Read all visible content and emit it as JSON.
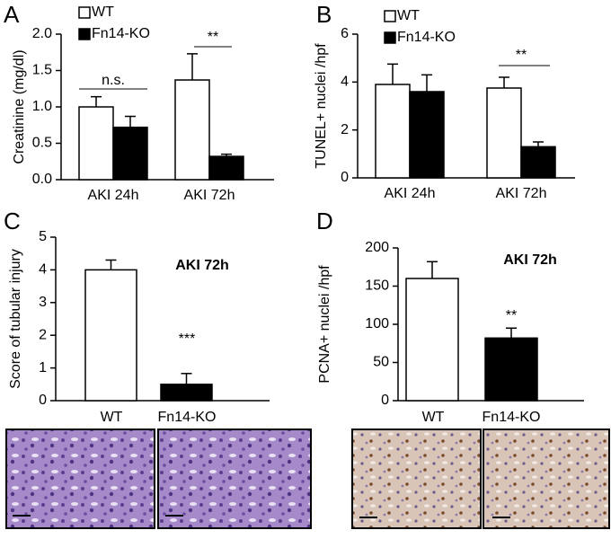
{
  "chart_data": [
    {
      "type": "bar",
      "panel": "A",
      "ylabel": "Creatinine (mg/dl)",
      "categories": [
        "AKI 24h",
        "AKI 72h"
      ],
      "series": [
        {
          "name": "WT",
          "color": "#ffffff",
          "values": [
            1.0,
            1.37
          ],
          "errors": [
            0.14,
            0.36
          ]
        },
        {
          "name": "Fn14-KO",
          "color": "#000000",
          "values": [
            0.72,
            0.32
          ],
          "errors": [
            0.15,
            0.03
          ]
        }
      ],
      "ylim": [
        0,
        2
      ],
      "yticks": [
        {
          "value": 0,
          "label": "0.0"
        },
        {
          "value": 0.5,
          "label": "0.5"
        },
        {
          "value": 1,
          "label": "1.0"
        },
        {
          "value": 1.5,
          "label": "1.5"
        },
        {
          "value": 2,
          "label": "2.0"
        }
      ],
      "annotations": [
        "n.s.",
        "**"
      ]
    },
    {
      "type": "bar",
      "panel": "B",
      "ylabel": "TUNEL+ nuclei /hpf",
      "categories": [
        "AKI 24h",
        "AKI 72h"
      ],
      "series": [
        {
          "name": "WT",
          "color": "#ffffff",
          "values": [
            3.9,
            3.75
          ],
          "errors": [
            0.85,
            0.45
          ]
        },
        {
          "name": "Fn14-KO",
          "color": "#000000",
          "values": [
            3.6,
            1.3
          ],
          "errors": [
            0.7,
            0.2
          ]
        }
      ],
      "ylim": [
        0,
        6
      ],
      "yticks": [
        0,
        2,
        4,
        6
      ],
      "annotations": [
        "**"
      ]
    },
    {
      "type": "bar",
      "panel": "C",
      "ylabel": "Score of tubular injury",
      "categories": [
        "WT",
        "Fn14-KO"
      ],
      "series": [
        {
          "colors": [
            "#ffffff",
            "#000000"
          ],
          "values": [
            4.0,
            0.5
          ],
          "errors": [
            0.3,
            0.33
          ]
        }
      ],
      "ylim": [
        0,
        5
      ],
      "yticks": [
        0,
        1,
        2,
        3,
        4,
        5
      ],
      "annotations": [
        "AKI 72h",
        "***"
      ]
    },
    {
      "type": "bar",
      "panel": "D",
      "ylabel": "PCNA+ nuclei /hpf",
      "categories": [
        "WT",
        "Fn14-KO"
      ],
      "series": [
        {
          "colors": [
            "#ffffff",
            "#000000"
          ],
          "values": [
            160,
            82
          ],
          "errors": [
            22,
            13
          ]
        }
      ],
      "ylim": [
        0,
        200
      ],
      "yticks": [
        0,
        50,
        100,
        150,
        200
      ],
      "annotations": [
        "AKI 72h",
        "**"
      ]
    }
  ]
}
